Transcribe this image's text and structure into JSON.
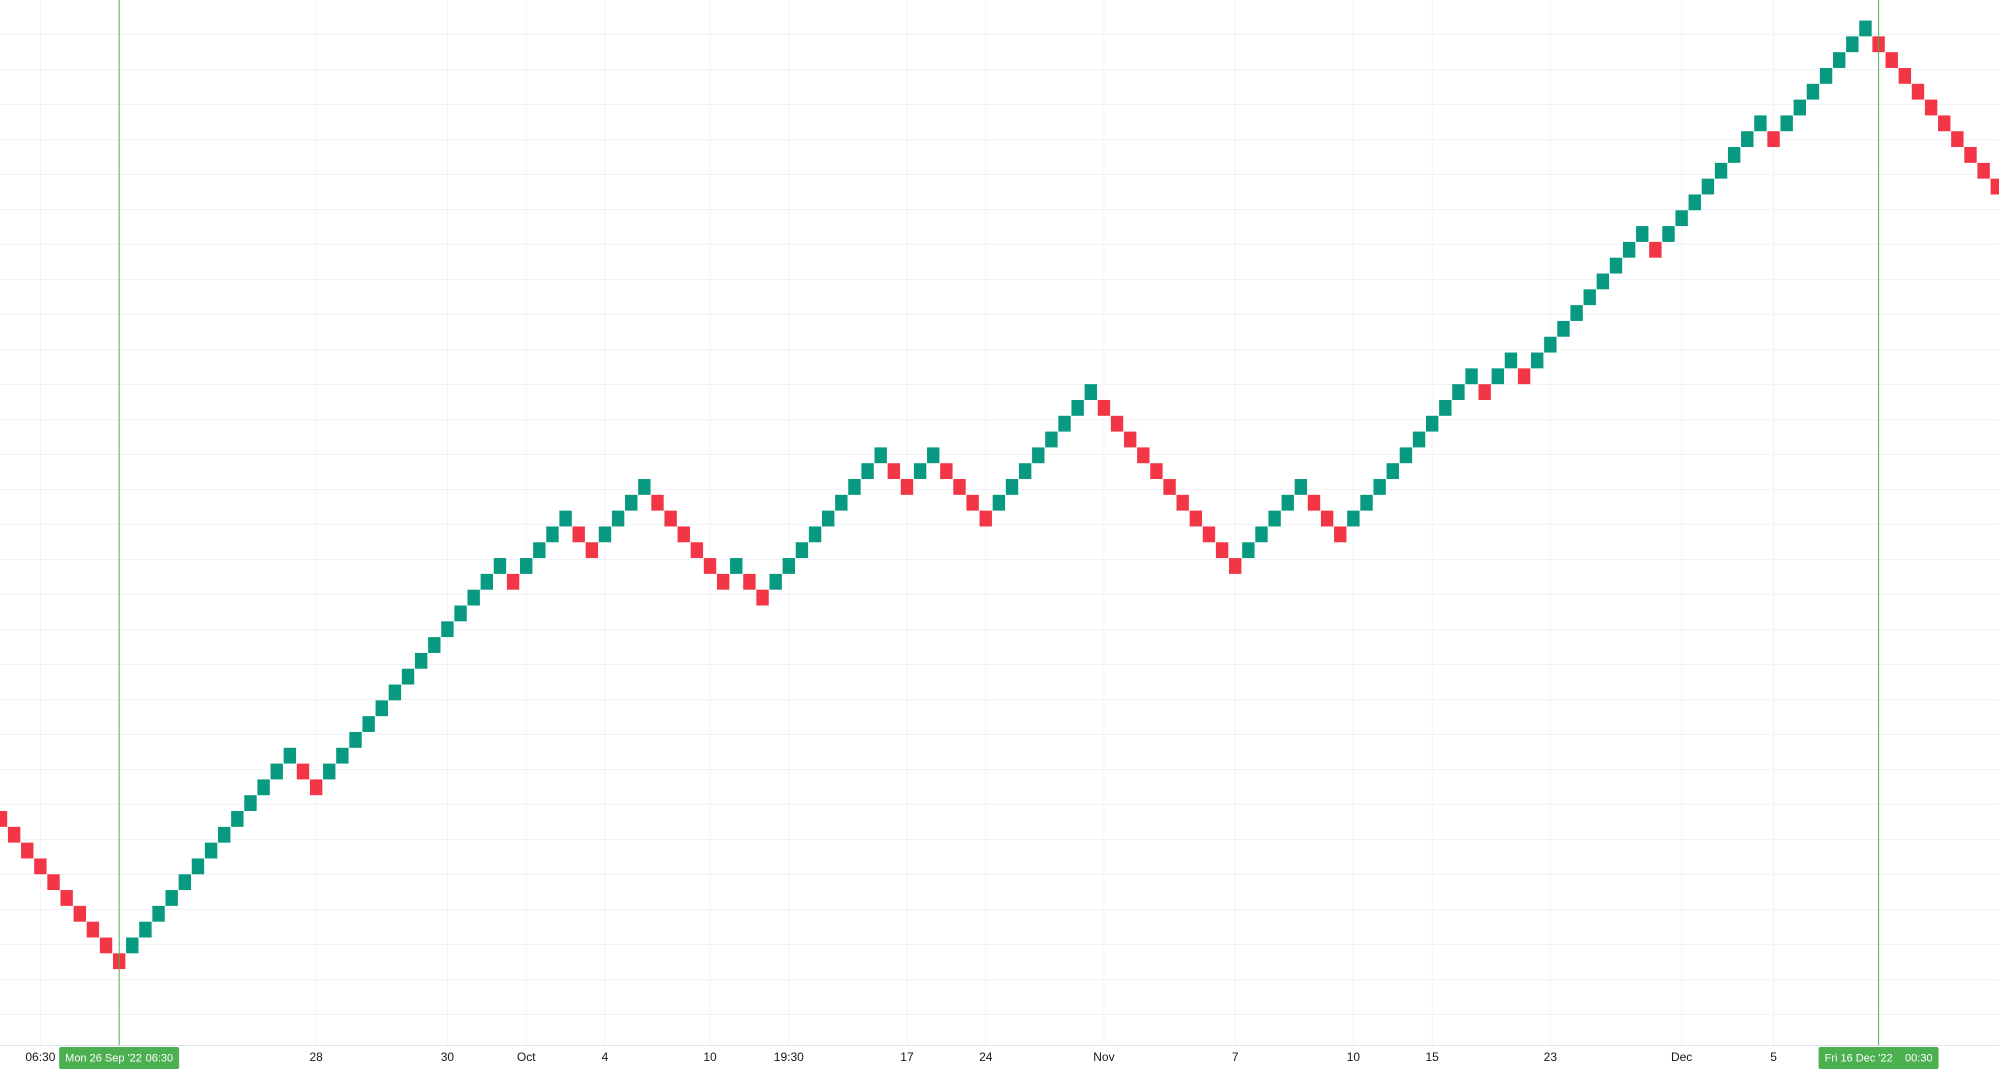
{
  "chart_data": {
    "type": "renko",
    "up_color": "#089981",
    "down_color": "#f23645",
    "grid": true,
    "ylim": [
      -4.8,
      61.3
    ],
    "open": [
      10,
      9,
      8,
      7,
      6,
      5,
      4,
      3,
      2,
      1,
      1,
      2,
      3,
      4,
      5,
      6,
      7,
      8,
      9,
      10,
      11,
      12,
      13,
      13,
      12,
      12,
      13,
      14,
      15,
      16,
      17,
      18,
      19,
      20,
      21,
      22,
      23,
      24,
      25,
      25,
      25,
      26,
      27,
      28,
      28,
      27,
      27,
      28,
      29,
      30,
      30,
      29,
      28,
      27,
      26,
      25,
      25,
      25,
      24,
      24,
      25,
      26,
      27,
      28,
      29,
      30,
      31,
      32,
      32,
      31,
      31,
      32,
      32,
      31,
      30,
      29,
      29,
      30,
      31,
      32,
      33,
      34,
      35,
      36,
      36,
      35,
      34,
      33,
      32,
      31,
      30,
      29,
      28,
      27,
      26,
      26,
      27,
      28,
      29,
      30,
      30,
      29,
      28,
      28,
      29,
      30,
      31,
      32,
      33,
      34,
      35,
      36,
      37,
      37,
      37,
      38,
      38,
      38,
      39,
      40,
      41,
      42,
      43,
      44,
      45,
      46,
      46,
      46,
      47,
      48,
      49,
      50,
      51,
      52,
      53,
      53,
      53,
      54,
      55,
      56,
      57,
      58,
      59,
      59,
      58,
      57,
      56,
      55,
      54,
      53,
      52,
      51,
      50
    ],
    "close": [
      9,
      8,
      7,
      6,
      5,
      4,
      3,
      2,
      1,
      0,
      2,
      3,
      4,
      5,
      6,
      7,
      8,
      9,
      10,
      11,
      12,
      13,
      14,
      12,
      11,
      13,
      14,
      15,
      16,
      17,
      18,
      19,
      20,
      21,
      22,
      23,
      24,
      25,
      26,
      24,
      26,
      27,
      28,
      29,
      27,
      26,
      28,
      29,
      30,
      31,
      29,
      28,
      27,
      26,
      25,
      24,
      26,
      24,
      23,
      25,
      26,
      27,
      28,
      29,
      30,
      31,
      32,
      33,
      31,
      30,
      32,
      33,
      31,
      30,
      29,
      28,
      30,
      31,
      32,
      33,
      34,
      35,
      36,
      37,
      35,
      34,
      33,
      32,
      31,
      30,
      29,
      28,
      27,
      26,
      25,
      27,
      28,
      29,
      30,
      31,
      29,
      28,
      27,
      29,
      30,
      31,
      32,
      33,
      34,
      35,
      36,
      37,
      38,
      36,
      38,
      39,
      37,
      39,
      40,
      41,
      42,
      43,
      44,
      45,
      46,
      47,
      45,
      47,
      48,
      49,
      50,
      51,
      52,
      53,
      54,
      52,
      54,
      55,
      56,
      57,
      58,
      59,
      60,
      58,
      57,
      56,
      55,
      54,
      53,
      52,
      51,
      50,
      49
    ],
    "categories": [
      null,
      null,
      null,
      "06:30",
      null,
      null,
      null,
      null,
      null,
      null,
      null,
      null,
      null,
      null,
      null,
      null,
      null,
      null,
      null,
      null,
      null,
      null,
      null,
      null,
      "28",
      null,
      null,
      null,
      null,
      null,
      null,
      null,
      null,
      null,
      "30",
      null,
      null,
      null,
      null,
      null,
      "Oct",
      null,
      null,
      null,
      null,
      null,
      "4",
      null,
      null,
      null,
      null,
      null,
      null,
      null,
      "10",
      null,
      null,
      null,
      null,
      null,
      "19:30",
      null,
      null,
      null,
      null,
      null,
      null,
      null,
      null,
      "17",
      null,
      null,
      null,
      null,
      null,
      "24",
      null,
      null,
      null,
      null,
      null,
      null,
      null,
      null,
      "Nov",
      null,
      null,
      null,
      null,
      null,
      null,
      null,
      null,
      null,
      "7",
      null,
      null,
      null,
      null,
      null,
      null,
      null,
      null,
      "10",
      null,
      null,
      null,
      null,
      null,
      "15",
      null,
      null,
      null,
      null,
      null,
      null,
      null,
      null,
      "23",
      null,
      null,
      null,
      null,
      null,
      null,
      null,
      null,
      null,
      "Dec",
      null,
      null,
      null,
      null,
      null,
      null,
      "5",
      null,
      null,
      null,
      null,
      null,
      null,
      null,
      null,
      null,
      null,
      null,
      null,
      null,
      null,
      null,
      null,
      null
    ],
    "crosshairs": [
      {
        "at": 9,
        "date": "Mon 26 Sep '22",
        "time": "06:30",
        "color": "#4caf50"
      },
      {
        "at": 143,
        "date": "Fri 16 Dec '22",
        "time": "00:30",
        "color": "#4caf50"
      }
    ]
  }
}
